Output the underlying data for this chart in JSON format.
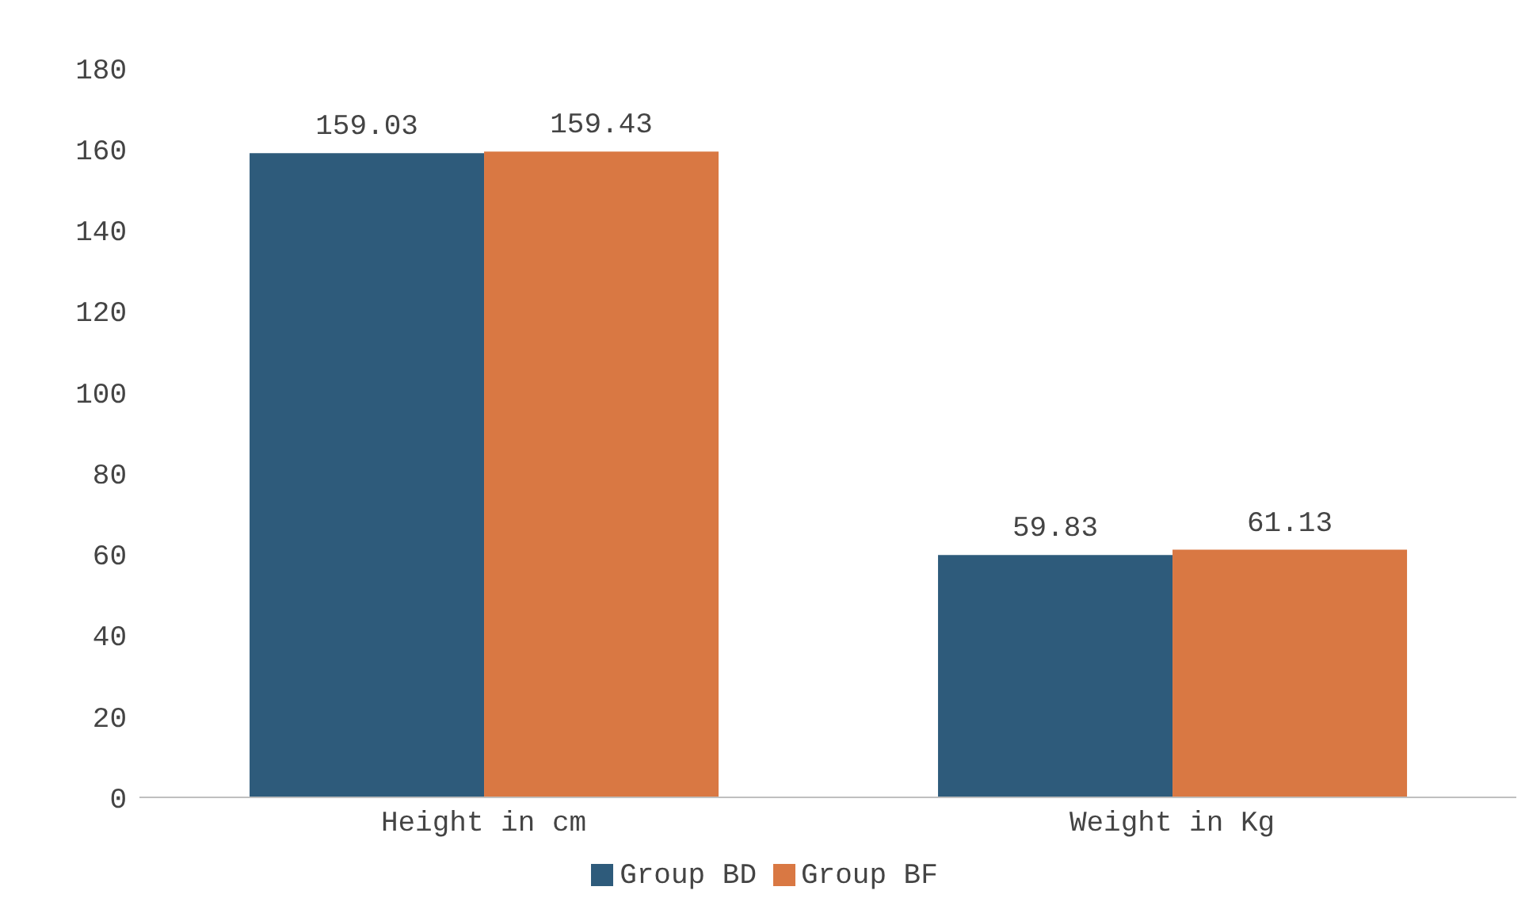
{
  "chart_data": {
    "type": "bar",
    "categories": [
      "Height in cm",
      "Weight in Kg"
    ],
    "series": [
      {
        "name": "Group BD",
        "color": "#2e5b7b",
        "values": [
          159.03,
          59.83
        ]
      },
      {
        "name": "Group BF",
        "color": "#d97843",
        "values": [
          159.43,
          61.13
        ]
      }
    ],
    "ylim": [
      0,
      180
    ],
    "yticks": [
      0,
      20,
      40,
      60,
      80,
      100,
      120,
      140,
      160,
      180
    ],
    "grid": false,
    "legend": "bottom",
    "data_labels": true
  }
}
